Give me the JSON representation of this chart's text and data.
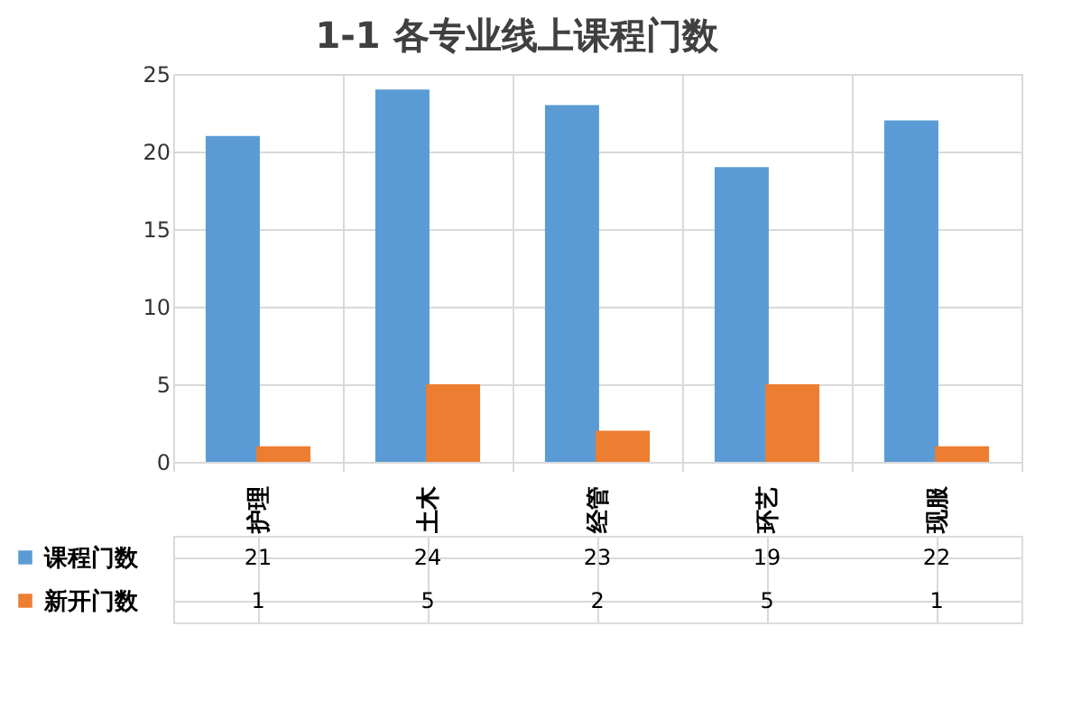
{
  "chart_data": {
    "type": "bar",
    "title": "1-1   各专业线上课程门数",
    "categories": [
      "护理",
      "土木",
      "经管",
      "环艺",
      "现服"
    ],
    "series": [
      {
        "name": "课程门数",
        "color": "#5b9bd5",
        "values": [
          21,
          24,
          23,
          19,
          22
        ]
      },
      {
        "name": "新开门数",
        "color": "#ed7d31",
        "values": [
          1,
          5,
          2,
          5,
          1
        ]
      }
    ],
    "ylim": [
      0,
      25
    ],
    "yticks": [
      0,
      5,
      10,
      15,
      20,
      25
    ],
    "grid": "y",
    "data_labels": true,
    "legend": "bottom"
  }
}
